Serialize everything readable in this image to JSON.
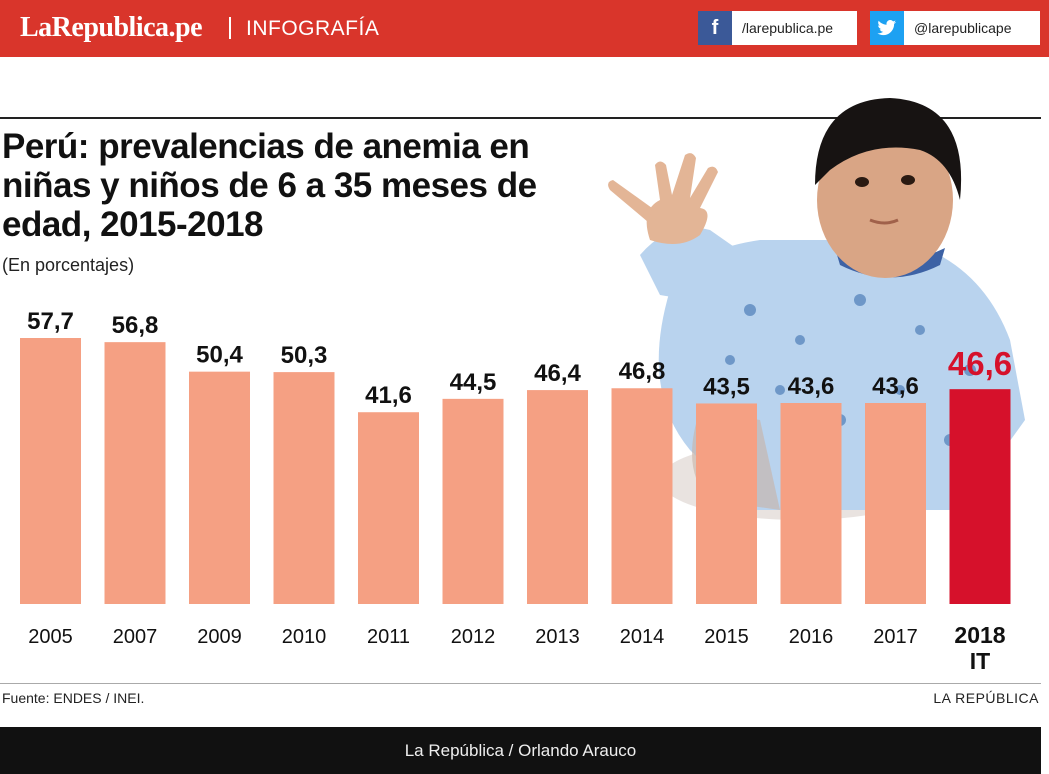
{
  "header": {
    "brand": "LaRepublica.pe",
    "section": "INFOGRAFÍA",
    "facebook": {
      "icon": "facebook-icon",
      "glyph": "f",
      "label": "/larepublica.pe"
    },
    "twitter": {
      "icon": "twitter-icon",
      "glyph": "🐦",
      "label": "@larepublicape"
    }
  },
  "title": "Perú: prevalencias de anemia en niñas y niños de 6 a 35 meses de edad, 2015-2018",
  "subtitle": "(En porcentajes)",
  "chart_data": {
    "type": "bar",
    "categories": [
      "2005",
      "2007",
      "2009",
      "2010",
      "2011",
      "2012",
      "2013",
      "2014",
      "2015",
      "2016",
      "2017",
      "2018"
    ],
    "category_sublabels": {
      "2018": "IT"
    },
    "values": [
      57.7,
      56.8,
      50.4,
      50.3,
      41.6,
      44.5,
      46.4,
      46.8,
      43.5,
      43.6,
      43.6,
      46.6
    ],
    "value_labels": [
      "57,7",
      "56,8",
      "50,4",
      "50,3",
      "41,6",
      "44,5",
      "46,4",
      "46,8",
      "43,5",
      "43,6",
      "43,6",
      "46,6"
    ],
    "highlight_index": 11,
    "ylim": [
      0,
      57.7
    ],
    "grid": false,
    "colors": {
      "bar": "#f5a083",
      "highlight": "#d6112b"
    }
  },
  "source": "Fuente: ENDES / INEI.",
  "credit": "LA REPÚBLICA",
  "footer": "La República / Orlando Arauco"
}
